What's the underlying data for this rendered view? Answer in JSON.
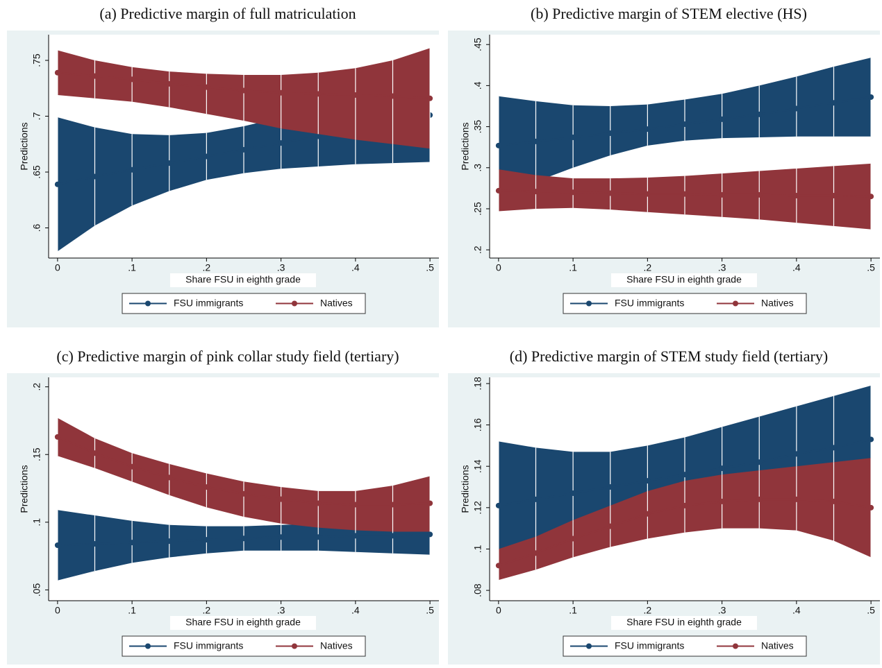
{
  "chart_data": [
    {
      "type": "line",
      "title": "(a) Predictive margin of full matriculation",
      "x_label": "Share FSU in eighth grade",
      "y_label": "Predictions",
      "x": [
        0,
        0.05,
        0.1,
        0.15,
        0.2,
        0.25,
        0.3,
        0.35,
        0.4,
        0.45,
        0.5
      ],
      "xlim": [
        -0.012,
        0.512
      ],
      "xticks": [
        0,
        {
          "value": 0.1,
          "label": ".1"
        },
        {
          "value": 0.2,
          "label": ".2"
        },
        {
          "value": 0.3,
          "label": ".3"
        },
        {
          "value": 0.4,
          "label": ".4"
        },
        {
          "value": 0.5,
          "label": ".5"
        }
      ],
      "ylim": [
        0.573,
        0.773
      ],
      "yticks": [
        {
          "value": 0.6,
          "label": ".6"
        },
        {
          "value": 0.65,
          "label": ".65"
        },
        {
          "value": 0.7,
          "label": ".7"
        },
        {
          "value": 0.75,
          "label": ".75"
        }
      ],
      "legend": "bottom",
      "series": [
        {
          "name": "FSU immigrants",
          "color": "#1a476f",
          "values": [
            0.639,
            0.646,
            0.652,
            0.658,
            0.664,
            0.67,
            0.676,
            0.682,
            0.689,
            0.695,
            0.701
          ],
          "lower": [
            0.579,
            0.602,
            0.62,
            0.633,
            0.643,
            0.649,
            0.653,
            0.655,
            0.657,
            0.658,
            0.659
          ],
          "upper": [
            0.699,
            0.69,
            0.684,
            0.683,
            0.685,
            0.691,
            0.699,
            0.709,
            0.721,
            0.732,
            0.743
          ]
        },
        {
          "name": "Natives",
          "color": "#90353b",
          "values": [
            0.739,
            0.736,
            0.733,
            0.729,
            0.726,
            0.723,
            0.721,
            0.72,
            0.719,
            0.718,
            0.716
          ],
          "lower": [
            0.719,
            0.716,
            0.713,
            0.708,
            0.702,
            0.696,
            0.689,
            0.684,
            0.679,
            0.675,
            0.671
          ],
          "upper": [
            0.759,
            0.75,
            0.744,
            0.74,
            0.738,
            0.737,
            0.737,
            0.739,
            0.743,
            0.75,
            0.761
          ]
        }
      ]
    },
    {
      "type": "line",
      "title": "(b) Predictive margin of STEM elective (HS)",
      "x_label": "Share FSU in eighth grade",
      "y_label": "Predictions",
      "x": [
        0,
        0.05,
        0.1,
        0.15,
        0.2,
        0.25,
        0.3,
        0.35,
        0.4,
        0.45,
        0.5
      ],
      "xlim": [
        -0.012,
        0.512
      ],
      "xticks": [
        0,
        {
          "value": 0.1,
          "label": ".1"
        },
        {
          "value": 0.2,
          "label": ".2"
        },
        {
          "value": 0.3,
          "label": ".3"
        },
        {
          "value": 0.4,
          "label": ".4"
        },
        {
          "value": 0.5,
          "label": ".5"
        }
      ],
      "ylim": [
        0.19,
        0.462
      ],
      "yticks": [
        {
          "value": 0.2,
          "label": ".2"
        },
        {
          "value": 0.25,
          "label": ".25"
        },
        {
          "value": 0.3,
          "label": ".3"
        },
        {
          "value": 0.35,
          "label": ".35"
        },
        {
          "value": 0.4,
          "label": ".4"
        },
        {
          "value": 0.45,
          "label": ".45"
        }
      ],
      "legend": "bottom",
      "series": [
        {
          "name": "FSU immigrants",
          "color": "#1a476f",
          "values": [
            0.327,
            0.332,
            0.337,
            0.342,
            0.347,
            0.353,
            0.359,
            0.365,
            0.372,
            0.379,
            0.386
          ],
          "lower": [
            0.268,
            0.283,
            0.3,
            0.315,
            0.327,
            0.333,
            0.336,
            0.337,
            0.338,
            0.338,
            0.338
          ],
          "upper": [
            0.387,
            0.381,
            0.376,
            0.375,
            0.377,
            0.383,
            0.39,
            0.4,
            0.411,
            0.423,
            0.434
          ]
        },
        {
          "name": "Natives",
          "color": "#90353b",
          "values": [
            0.272,
            0.271,
            0.27,
            0.269,
            0.268,
            0.268,
            0.267,
            0.267,
            0.266,
            0.266,
            0.265
          ],
          "lower": [
            0.247,
            0.25,
            0.251,
            0.249,
            0.246,
            0.243,
            0.24,
            0.237,
            0.233,
            0.229,
            0.225
          ],
          "upper": [
            0.298,
            0.291,
            0.287,
            0.287,
            0.288,
            0.29,
            0.293,
            0.296,
            0.299,
            0.302,
            0.305
          ]
        }
      ]
    },
    {
      "type": "line",
      "title": "(c) Predictive margin of pink collar study field (tertiary)",
      "x_label": "Share FSU in eighth grade",
      "y_label": "Predictions",
      "x": [
        0,
        0.05,
        0.1,
        0.15,
        0.2,
        0.25,
        0.3,
        0.35,
        0.4,
        0.45,
        0.5
      ],
      "xlim": [
        -0.012,
        0.512
      ],
      "xticks": [
        0,
        {
          "value": 0.1,
          "label": ".1"
        },
        {
          "value": 0.2,
          "label": ".2"
        },
        {
          "value": 0.3,
          "label": ".3"
        },
        {
          "value": 0.4,
          "label": ".4"
        },
        {
          "value": 0.5,
          "label": ".5"
        }
      ],
      "ylim": [
        0.042,
        0.207
      ],
      "yticks": [
        {
          "value": 0.05,
          "label": ".05"
        },
        {
          "value": 0.1,
          "label": ".1"
        },
        {
          "value": 0.15,
          "label": ".15"
        },
        {
          "value": 0.2,
          "label": ".2"
        }
      ],
      "legend": "bottom",
      "series": [
        {
          "name": "FSU immigrants",
          "color": "#1a476f",
          "values": [
            0.083,
            0.084,
            0.085,
            0.086,
            0.087,
            0.088,
            0.089,
            0.089,
            0.09,
            0.09,
            0.091
          ],
          "lower": [
            0.057,
            0.064,
            0.07,
            0.074,
            0.077,
            0.079,
            0.079,
            0.079,
            0.078,
            0.077,
            0.076
          ],
          "upper": [
            0.109,
            0.105,
            0.101,
            0.098,
            0.097,
            0.097,
            0.098,
            0.099,
            0.101,
            0.103,
            0.106
          ]
        },
        {
          "name": "Natives",
          "color": "#90353b",
          "values": [
            0.163,
            0.151,
            0.141,
            0.133,
            0.126,
            0.121,
            0.117,
            0.114,
            0.113,
            0.113,
            0.114
          ],
          "lower": [
            0.149,
            0.14,
            0.13,
            0.12,
            0.111,
            0.104,
            0.099,
            0.096,
            0.094,
            0.093,
            0.093
          ],
          "upper": [
            0.177,
            0.162,
            0.151,
            0.143,
            0.136,
            0.13,
            0.126,
            0.123,
            0.123,
            0.127,
            0.134
          ]
        }
      ]
    },
    {
      "type": "line",
      "title": "(d) Predictive margin of STEM study field (tertiary)",
      "x_label": "Share FSU in eighth grade",
      "y_label": "Predictions",
      "x": [
        0,
        0.05,
        0.1,
        0.15,
        0.2,
        0.25,
        0.3,
        0.35,
        0.4,
        0.45,
        0.5
      ],
      "xlim": [
        -0.012,
        0.512
      ],
      "xticks": [
        0,
        {
          "value": 0.1,
          "label": ".1"
        },
        {
          "value": 0.2,
          "label": ".2"
        },
        {
          "value": 0.3,
          "label": ".3"
        },
        {
          "value": 0.4,
          "label": ".4"
        },
        {
          "value": 0.5,
          "label": ".5"
        }
      ],
      "ylim": [
        0.075,
        0.183
      ],
      "yticks": [
        {
          "value": 0.08,
          "label": ".08"
        },
        {
          "value": 0.1,
          "label": ".1"
        },
        {
          "value": 0.12,
          "label": ".12"
        },
        {
          "value": 0.14,
          "label": ".14"
        },
        {
          "value": 0.16,
          "label": ".16"
        },
        {
          "value": 0.18,
          "label": ".18"
        }
      ],
      "legend": "bottom",
      "series": [
        {
          "name": "FSU immigrants",
          "color": "#1a476f",
          "values": [
            0.121,
            0.124,
            0.127,
            0.13,
            0.133,
            0.136,
            0.139,
            0.142,
            0.146,
            0.149,
            0.153
          ],
          "lower": [
            0.09,
            0.099,
            0.107,
            0.113,
            0.116,
            0.118,
            0.119,
            0.12,
            0.123,
            0.124,
            0.127
          ],
          "upper": [
            0.152,
            0.149,
            0.147,
            0.147,
            0.15,
            0.154,
            0.159,
            0.164,
            0.169,
            0.174,
            0.179
          ]
        },
        {
          "name": "Natives",
          "color": "#90353b",
          "values": [
            0.092,
            0.098,
            0.105,
            0.111,
            0.117,
            0.121,
            0.123,
            0.124,
            0.124,
            0.123,
            0.12
          ],
          "lower": [
            0.085,
            0.09,
            0.096,
            0.101,
            0.105,
            0.108,
            0.11,
            0.11,
            0.109,
            0.104,
            0.096
          ],
          "upper": [
            0.1,
            0.106,
            0.114,
            0.121,
            0.128,
            0.133,
            0.136,
            0.138,
            0.14,
            0.142,
            0.144
          ]
        }
      ]
    }
  ]
}
